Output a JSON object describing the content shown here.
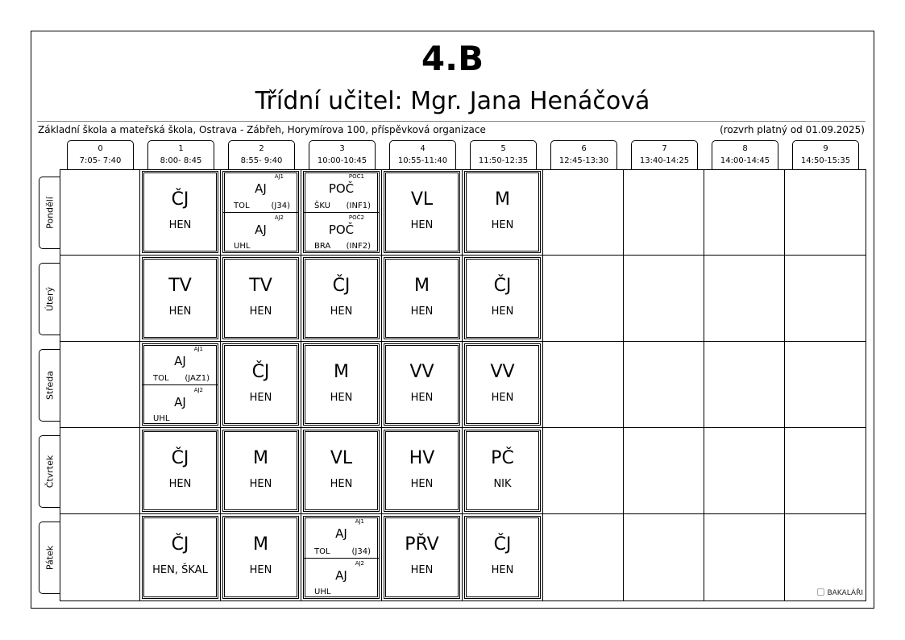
{
  "title": "4.B",
  "subtitle": "Třídní učitel: Mgr. Jana Henáčová",
  "school": "Základní škola a mateřská škola, Ostrava - Zábřeh, Horymírova 100, příspěvková organizace",
  "validity": "(rozvrh platný od 01.09.2025)",
  "logo": "BAKALÁŘI",
  "periods": [
    {
      "num": "0",
      "time": "7:05- 7:40"
    },
    {
      "num": "1",
      "time": "8:00- 8:45"
    },
    {
      "num": "2",
      "time": "8:55- 9:40"
    },
    {
      "num": "3",
      "time": "10:00-10:45"
    },
    {
      "num": "4",
      "time": "10:55-11:40"
    },
    {
      "num": "5",
      "time": "11:50-12:35"
    },
    {
      "num": "6",
      "time": "12:45-13:30"
    },
    {
      "num": "7",
      "time": "13:40-14:25"
    },
    {
      "num": "8",
      "time": "14:00-14:45"
    },
    {
      "num": "9",
      "time": "14:50-15:35"
    }
  ],
  "days": [
    {
      "name": "Pondělí",
      "lessons": [
        null,
        {
          "subject": "ČJ",
          "teacher": "HEN"
        },
        {
          "groups": [
            {
              "group": "AJ1",
              "subject": "AJ",
              "teacher": "TOL",
              "room": "(J34)"
            },
            {
              "group": "AJ2",
              "subject": "AJ",
              "teacher": "UHL",
              "room": ""
            }
          ]
        },
        {
          "groups": [
            {
              "group": "POČ1",
              "subject": "POČ",
              "teacher": "ŠKU",
              "room": "(INF1)"
            },
            {
              "group": "POČ2",
              "subject": "POČ",
              "teacher": "BRA",
              "room": "(INF2)"
            }
          ]
        },
        {
          "subject": "VL",
          "teacher": "HEN"
        },
        {
          "subject": "M",
          "teacher": "HEN"
        },
        null,
        null,
        null,
        null
      ]
    },
    {
      "name": "Úterý",
      "lessons": [
        null,
        {
          "subject": "TV",
          "teacher": "HEN"
        },
        {
          "subject": "TV",
          "teacher": "HEN"
        },
        {
          "subject": "ČJ",
          "teacher": "HEN"
        },
        {
          "subject": "M",
          "teacher": "HEN"
        },
        {
          "subject": "ČJ",
          "teacher": "HEN"
        },
        null,
        null,
        null,
        null
      ]
    },
    {
      "name": "Středa",
      "lessons": [
        null,
        {
          "groups": [
            {
              "group": "AJ1",
              "subject": "AJ",
              "teacher": "TOL",
              "room": "(JAZ1)"
            },
            {
              "group": "AJ2",
              "subject": "AJ",
              "teacher": "UHL",
              "room": ""
            }
          ]
        },
        {
          "subject": "ČJ",
          "teacher": "HEN"
        },
        {
          "subject": "M",
          "teacher": "HEN"
        },
        {
          "subject": "VV",
          "teacher": "HEN"
        },
        {
          "subject": "VV",
          "teacher": "HEN"
        },
        null,
        null,
        null,
        null
      ]
    },
    {
      "name": "Čtvrtek",
      "lessons": [
        null,
        {
          "subject": "ČJ",
          "teacher": "HEN"
        },
        {
          "subject": "M",
          "teacher": "HEN"
        },
        {
          "subject": "VL",
          "teacher": "HEN"
        },
        {
          "subject": "HV",
          "teacher": "HEN"
        },
        {
          "subject": "PČ",
          "teacher": "NIK"
        },
        null,
        null,
        null,
        null
      ]
    },
    {
      "name": "Pátek",
      "lessons": [
        null,
        {
          "subject": "ČJ",
          "teacher": "HEN, ŠKAL"
        },
        {
          "subject": "M",
          "teacher": "HEN"
        },
        {
          "groups": [
            {
              "group": "AJ1",
              "subject": "AJ",
              "teacher": "TOL",
              "room": "(J34)"
            },
            {
              "group": "AJ2",
              "subject": "AJ",
              "teacher": "UHL",
              "room": ""
            }
          ]
        },
        {
          "subject": "PŘV",
          "teacher": "HEN"
        },
        {
          "subject": "ČJ",
          "teacher": "HEN"
        },
        null,
        null,
        null,
        null
      ]
    }
  ]
}
